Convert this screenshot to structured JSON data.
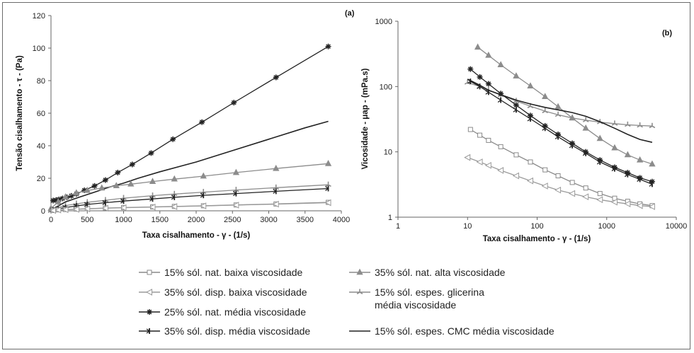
{
  "legend": {
    "left": [
      {
        "key": "s1",
        "label": "15% sól. nat. baixa viscosidade"
      },
      {
        "key": "s2",
        "label": "35% sól. disp. baixa viscosidade"
      },
      {
        "key": "s3",
        "label": "25% sól. nat. média viscosidade"
      },
      {
        "key": "s4",
        "label": "35% sól. disp. média viscosidade"
      }
    ],
    "right": [
      {
        "key": "s5",
        "label": "35% sól. nat. alta viscosidade"
      },
      {
        "key": "s6",
        "label": "15% sól. espes. glicerina",
        "label2": "média viscosidade"
      },
      {
        "key": "s7",
        "label": "15% sól. espes. CMC média viscosidade"
      }
    ]
  },
  "styles": {
    "s1": {
      "color": "#8a8a8a",
      "marker": "square"
    },
    "s2": {
      "color": "#9a9a9a",
      "marker": "triangle-left"
    },
    "s3": {
      "color": "#222222",
      "marker": "star"
    },
    "s4": {
      "color": "#222222",
      "marker": "bar-arrow"
    },
    "s5": {
      "color": "#8c8c8c",
      "marker": "triangle-up"
    },
    "s6": {
      "color": "#8c8c8c",
      "marker": "star-tri"
    },
    "s7": {
      "color": "#222222",
      "marker": "none"
    }
  },
  "chart_data": [
    {
      "panel": "(a)",
      "type": "line",
      "xlabel": "Taxa cisalhamento - γ - (1/s)",
      "ylabel": "Tensão cisalhamento - τ - (Pa)",
      "xlim": [
        0,
        4000
      ],
      "ylim": [
        0,
        120
      ],
      "xticks": [
        0,
        500,
        1000,
        1500,
        2000,
        2500,
        3000,
        3500,
        4000
      ],
      "yticks": [
        0,
        20,
        40,
        60,
        80,
        100,
        120
      ],
      "series": [
        {
          "key": "s3",
          "x": [
            30,
            70,
            110,
            160,
            220,
            280,
            350,
            460,
            600,
            750,
            920,
            1120,
            1380,
            1680,
            2080,
            2520,
            3100,
            3820
          ],
          "y": [
            6.3,
            6.6,
            7.0,
            7.6,
            8.3,
            9.2,
            10.4,
            12.6,
            15.3,
            18.9,
            23.5,
            28.5,
            35.5,
            44,
            54.5,
            66.5,
            82,
            101
          ]
        },
        {
          "key": "s7",
          "x": [
            0,
            100,
            200,
            400,
            600,
            800,
            1000,
            1200,
            1500,
            2000,
            2500,
            3000,
            3500,
            3820
          ],
          "y": [
            0.5,
            3,
            5.5,
            8.5,
            11.5,
            14.5,
            17,
            20,
            24,
            30,
            37,
            44,
            51,
            55
          ]
        },
        {
          "key": "s5",
          "x": [
            0,
            100,
            200,
            350,
            500,
            700,
            900,
            1100,
            1400,
            1700,
            2100,
            2550,
            3100,
            3820
          ],
          "y": [
            1.5,
            5.5,
            8.5,
            11,
            12.5,
            14,
            15.4,
            16.4,
            18,
            19.5,
            21.3,
            23.5,
            26,
            29
          ]
        },
        {
          "key": "s6",
          "x": [
            0,
            100,
            200,
            350,
            500,
            750,
            1000,
            1400,
            1700,
            2100,
            2550,
            3100,
            3820
          ],
          "y": [
            0,
            2,
            3.2,
            4.3,
            5.2,
            6.5,
            7.8,
            9.3,
            10.3,
            11.5,
            12.8,
            14.2,
            16
          ]
        },
        {
          "key": "s4",
          "x": [
            30,
            100,
            200,
            350,
            500,
            750,
            1000,
            1400,
            1700,
            2100,
            2550,
            3100,
            3820
          ],
          "y": [
            0.5,
            1.2,
            2.0,
            3.0,
            3.9,
            5.0,
            6.0,
            7.3,
            8.3,
            9.5,
            10.6,
            12,
            13.7
          ]
        },
        {
          "key": "s1",
          "x": [
            30,
            100,
            200,
            350,
            500,
            750,
            1000,
            1400,
            1700,
            2100,
            2550,
            3100,
            3820
          ],
          "y": [
            0.3,
            0.6,
            0.8,
            1.0,
            1.3,
            1.7,
            2.0,
            2.4,
            2.7,
            3.1,
            3.6,
            4.2,
            5.2
          ]
        },
        {
          "key": "s2",
          "x": [
            30,
            100,
            200,
            350,
            500,
            750,
            1000,
            1400,
            1700,
            2100,
            2550,
            3100,
            3820
          ],
          "y": [
            0.2,
            0.5,
            0.7,
            0.9,
            1.2,
            1.6,
            1.9,
            2.3,
            2.6,
            3.0,
            3.5,
            4.1,
            5.0
          ]
        }
      ]
    },
    {
      "panel": "(b)",
      "type": "line",
      "xlabel": "Taxa cisalhamento - γ - (1/s)",
      "ylabel": "Vicosidade - μap - (mPa.s)",
      "xscale": "log",
      "yscale": "log",
      "xlim": [
        1,
        10000
      ],
      "ylim": [
        1,
        1000
      ],
      "xticks": [
        1,
        10,
        100,
        1000,
        10000
      ],
      "yticks": [
        1,
        10,
        100,
        1000
      ],
      "series": [
        {
          "key": "s5",
          "x": [
            14,
            20,
            30,
            50,
            80,
            130,
            200,
            320,
            500,
            800,
            1300,
            2000,
            3000,
            4500
          ],
          "y": [
            400,
            300,
            215,
            145,
            102,
            70,
            49,
            33,
            23,
            16,
            11.5,
            9,
            7.5,
            6.5
          ]
        },
        {
          "key": "s6",
          "x": [
            10,
            15,
            20,
            30,
            50,
            80,
            130,
            200,
            320,
            500,
            800,
            1300,
            2000,
            3000,
            4500
          ],
          "y": [
            115,
            100,
            88,
            74,
            60,
            50,
            42,
            37,
            33,
            30.5,
            28.5,
            27,
            26,
            25.3,
            24.8
          ]
        },
        {
          "key": "s7",
          "x": [
            10,
            15,
            20,
            30,
            50,
            80,
            130,
            200,
            320,
            500,
            800,
            1300,
            2000,
            3000,
            4500
          ],
          "y": [
            130,
            105,
            88,
            75,
            62,
            54,
            48,
            44,
            40,
            35,
            29,
            23,
            18.5,
            15.5,
            14
          ]
        },
        {
          "key": "s3",
          "x": [
            11,
            15,
            20,
            30,
            50,
            80,
            130,
            200,
            320,
            500,
            800,
            1300,
            2000,
            3000,
            4500
          ],
          "y": [
            185,
            140,
            110,
            78,
            52,
            36,
            25,
            18.5,
            13.5,
            10,
            7.5,
            5.8,
            4.8,
            4.0,
            3.5
          ]
        },
        {
          "key": "s4",
          "x": [
            11,
            15,
            20,
            30,
            50,
            80,
            130,
            200,
            320,
            500,
            800,
            1300,
            2000,
            3000,
            4500
          ],
          "y": [
            120,
            100,
            82,
            62,
            44,
            32,
            23,
            17,
            12.5,
            9.5,
            7,
            5.5,
            4.5,
            3.8,
            3.2
          ]
        },
        {
          "key": "s1",
          "x": [
            11,
            15,
            20,
            30,
            50,
            80,
            130,
            200,
            320,
            500,
            800,
            1300,
            2000,
            3000,
            4500
          ],
          "y": [
            22,
            18,
            15,
            12,
            9,
            7,
            5.3,
            4.3,
            3.4,
            2.8,
            2.3,
            1.95,
            1.75,
            1.6,
            1.5
          ]
        },
        {
          "key": "s2",
          "x": [
            10,
            15,
            20,
            30,
            50,
            80,
            130,
            200,
            320,
            500,
            800,
            1300,
            2000,
            3000,
            4500
          ],
          "y": [
            8.2,
            7,
            6.2,
            5.2,
            4.3,
            3.6,
            3.0,
            2.6,
            2.3,
            2.05,
            1.85,
            1.7,
            1.6,
            1.5,
            1.45
          ]
        }
      ]
    }
  ]
}
